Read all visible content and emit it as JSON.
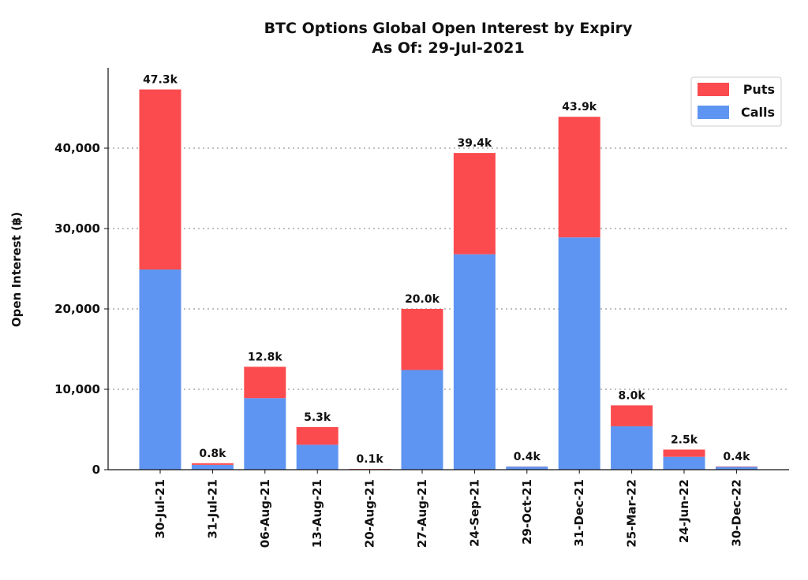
{
  "chart_data": {
    "type": "bar",
    "stacked": true,
    "title": "BTC Options Global Open Interest by Expiry",
    "subtitle": "As Of: 29-Jul-2021",
    "xlabel": "",
    "ylabel": "Open Interest (฿)",
    "ylim": [
      0,
      50000
    ],
    "yticks": [
      0,
      10000,
      20000,
      30000,
      40000
    ],
    "ytick_labels": [
      "0",
      "10,000",
      "20,000",
      "30,000",
      "40,000"
    ],
    "grid": "horizontal dotted",
    "legend_position": "top-right",
    "categories": [
      "30-Jul-21",
      "31-Jul-21",
      "06-Aug-21",
      "13-Aug-21",
      "20-Aug-21",
      "27-Aug-21",
      "24-Sep-21",
      "29-Oct-21",
      "31-Dec-21",
      "25-Mar-22",
      "24-Jun-22",
      "30-Dec-22"
    ],
    "series": [
      {
        "name": "Calls",
        "color": "#5f95f2",
        "values": [
          24900,
          600,
          8900,
          3100,
          60,
          12400,
          26800,
          380,
          28900,
          5400,
          1600,
          350
        ]
      },
      {
        "name": "Puts",
        "color": "#fb4b4e",
        "values": [
          22400,
          200,
          3900,
          2200,
          40,
          7600,
          12600,
          20,
          15000,
          2600,
          900,
          50
        ]
      }
    ],
    "totals_labels": [
      "47.3k",
      "0.8k",
      "12.8k",
      "5.3k",
      "0.1k",
      "20.0k",
      "39.4k",
      "0.4k",
      "43.9k",
      "8.0k",
      "2.5k",
      "0.4k"
    ],
    "legend": [
      "Puts",
      "Calls"
    ]
  }
}
